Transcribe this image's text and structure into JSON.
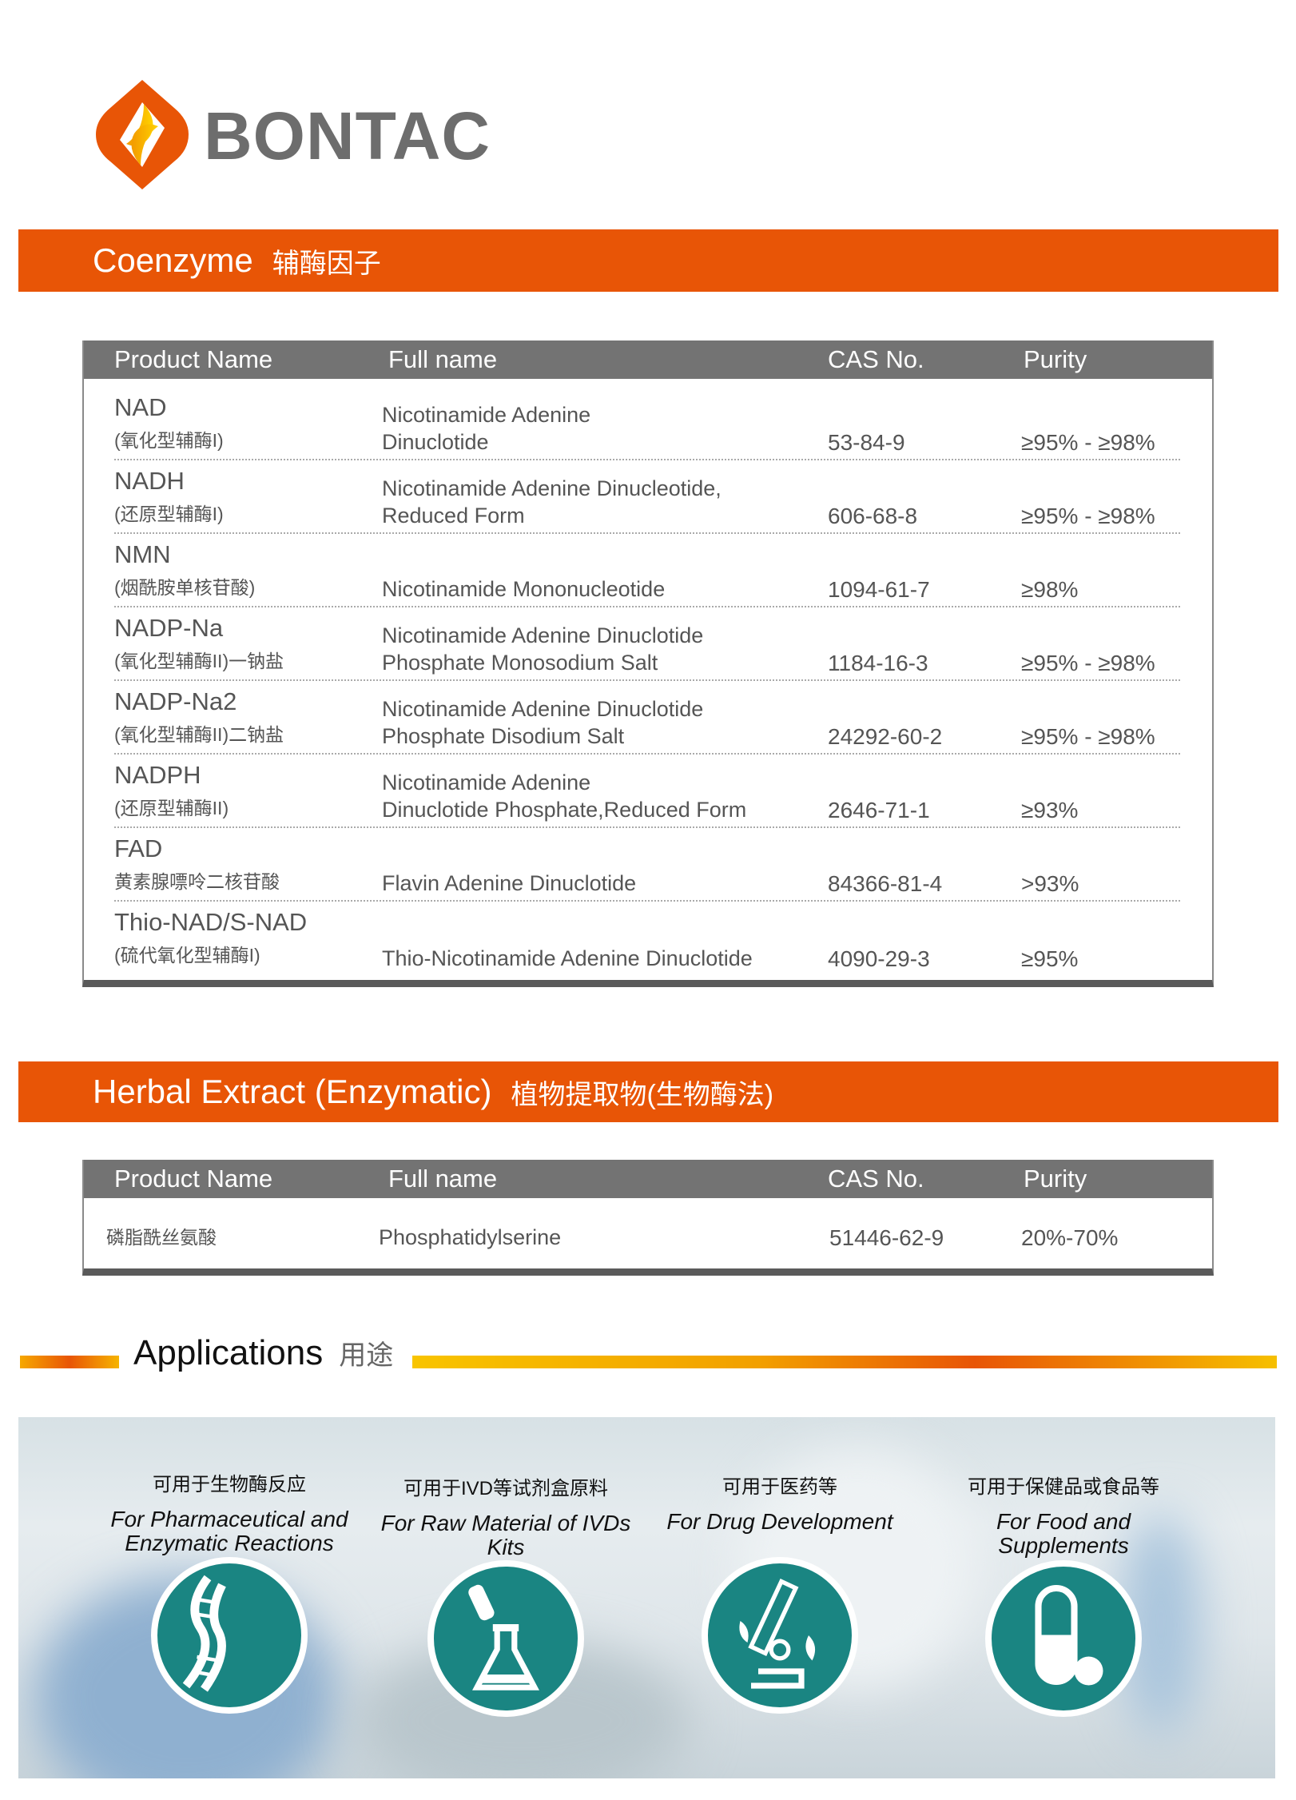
{
  "brand": {
    "name": "BONTAC",
    "logo_colors": [
      "#e85506",
      "#f6b400"
    ]
  },
  "colors": {
    "accent": "#e85506",
    "header_gray": "#737373",
    "icon_teal": "#1a8582"
  },
  "sections": [
    {
      "title_en": "Coenzyme",
      "title_cn": "辅酶因子"
    },
    {
      "title_en": "Herbal Extract (Enzymatic)",
      "title_cn": "植物提取物(生物酶法)"
    }
  ],
  "columns": [
    "Product Name",
    "Full name",
    "CAS No.",
    "Purity"
  ],
  "coenzyme_rows": [
    {
      "name": "NAD",
      "cn": "(氧化型辅酶I)",
      "full": "Nicotinamide Adenine\nDinuclotide",
      "cas": "53-84-9",
      "purity": "≥95% - ≥98%"
    },
    {
      "name": "NADH",
      "cn": "(还原型辅酶I)",
      "full": "Nicotinamide Adenine Dinucleotide,\nReduced Form",
      "cas": "606-68-8",
      "purity": "≥95% - ≥98%"
    },
    {
      "name": "NMN",
      "cn": "(烟酰胺单核苷酸)",
      "full": "Nicotinamide Mononucleotide",
      "cas": "1094-61-7",
      "purity": "≥98%"
    },
    {
      "name": "NADP-Na",
      "cn": "(氧化型辅酶II)一钠盐",
      "full": "Nicotinamide Adenine Dinuclotide\nPhosphate Monosodium Salt",
      "cas": "1184-16-3",
      "purity": "≥95% - ≥98%"
    },
    {
      "name": "NADP-Na2",
      "cn": "(氧化型辅酶II)二钠盐",
      "full": "Nicotinamide Adenine Dinuclotide\nPhosphate Disodium Salt",
      "cas": "24292-60-2",
      "purity": "≥95% - ≥98%"
    },
    {
      "name": "NADPH",
      "cn": "(还原型辅酶II)",
      "full": "Nicotinamide Adenine\nDinuclotide Phosphate,Reduced Form",
      "cas": "2646-71-1",
      "purity": "≥93%"
    },
    {
      "name": "FAD",
      "cn": "黄素腺嘌呤二核苷酸",
      "full": "Flavin Adenine Dinuclotide",
      "cas": "84366-81-4",
      "purity": ">93%"
    },
    {
      "name": "Thio-NAD/S-NAD",
      "cn": "(硫代氧化型辅酶I)",
      "full": "Thio-Nicotinamide Adenine Dinuclotide",
      "cas": "4090-29-3",
      "purity": "≥95%"
    }
  ],
  "herbal_rows": [
    {
      "name": "磷脂酰丝氨酸",
      "full": "Phosphatidylserine",
      "cas": "51446-62-9",
      "purity": "20%-70%"
    }
  ],
  "applications": {
    "title_en": "Applications",
    "title_cn": "用途",
    "items": [
      {
        "cn": "可用于生物酶反应",
        "en": "For Pharmaceutical and\nEnzymatic Reactions",
        "icon": "dna-icon"
      },
      {
        "cn": "可用于IVD等试剂盒原料",
        "en": "For Raw Material of IVDs Kits",
        "icon": "flask-icon"
      },
      {
        "cn": "可用于医药等",
        "en": "For Drug Development",
        "icon": "microscope-icon"
      },
      {
        "cn": "可用于保健品或食品等",
        "en": "For Food and\nSupplements",
        "icon": "capsule-icon"
      }
    ]
  }
}
